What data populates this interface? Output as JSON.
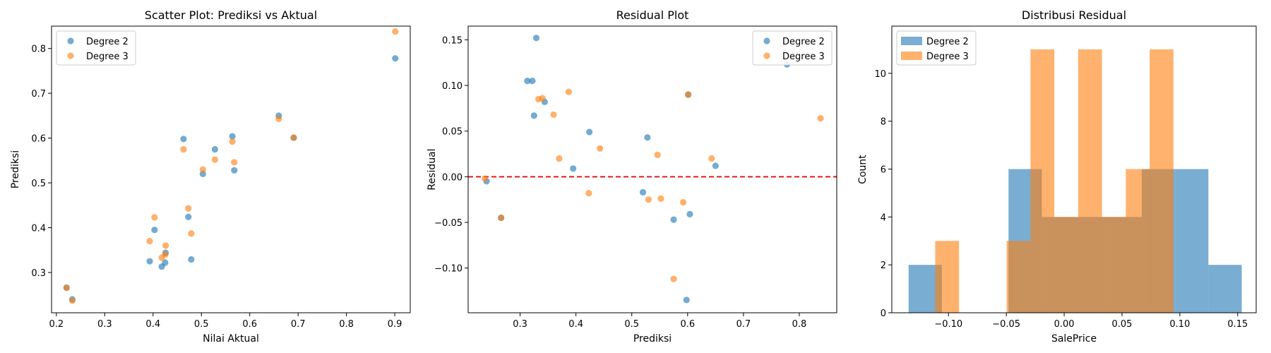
{
  "colors": {
    "degree2": "#1f77b4",
    "degree3": "#ff7f0e",
    "zero_line": "#e31a1c"
  },
  "chart_data": [
    {
      "type": "scatter",
      "title": "Scatter Plot: Prediksi vs Aktual",
      "xlabel": "Nilai Aktual",
      "ylabel": "Prediksi",
      "xlim": [
        0.19,
        0.932
      ],
      "ylim": [
        0.21,
        0.85
      ],
      "xticks": [
        "0.2",
        "0.3",
        "0.4",
        "0.5",
        "0.6",
        "0.7",
        "0.8",
        "0.9"
      ],
      "yticks": [
        "0.3",
        "0.4",
        "0.5",
        "0.6",
        "0.7",
        "0.8"
      ],
      "legend": "top-left",
      "grid": false,
      "series": [
        {
          "name": "Degree 2",
          "points": [
            [
              0.221,
              0.266
            ],
            [
              0.233,
              0.24
            ],
            [
              0.393,
              0.325
            ],
            [
              0.403,
              0.395
            ],
            [
              0.418,
              0.313
            ],
            [
              0.425,
              0.322
            ],
            [
              0.426,
              0.344
            ],
            [
              0.463,
              0.598
            ],
            [
              0.473,
              0.424
            ],
            [
              0.479,
              0.329
            ],
            [
              0.503,
              0.52
            ],
            [
              0.528,
              0.575
            ],
            [
              0.564,
              0.604
            ],
            [
              0.568,
              0.528
            ],
            [
              0.66,
              0.65
            ],
            [
              0.691,
              0.601
            ],
            [
              0.901,
              0.778
            ]
          ]
        },
        {
          "name": "Degree 3",
          "points": [
            [
              0.221,
              0.266
            ],
            [
              0.233,
              0.237
            ],
            [
              0.393,
              0.37
            ],
            [
              0.403,
              0.423
            ],
            [
              0.418,
              0.333
            ],
            [
              0.425,
              0.34
            ],
            [
              0.426,
              0.36
            ],
            [
              0.463,
              0.575
            ],
            [
              0.473,
              0.443
            ],
            [
              0.479,
              0.387
            ],
            [
              0.503,
              0.53
            ],
            [
              0.528,
              0.552
            ],
            [
              0.564,
              0.592
            ],
            [
              0.568,
              0.546
            ],
            [
              0.66,
              0.643
            ],
            [
              0.691,
              0.601
            ],
            [
              0.901,
              0.838
            ]
          ]
        }
      ]
    },
    {
      "type": "scatter",
      "title": "Residual Plot",
      "xlabel": "Prediksi",
      "ylabel": "Residual",
      "xlim": [
        0.207,
        0.867
      ],
      "ylim": [
        -0.149,
        0.165
      ],
      "xticks": [
        "0.3",
        "0.4",
        "0.5",
        "0.6",
        "0.7",
        "0.8"
      ],
      "yticks": [
        "−0.10",
        "−0.05",
        "0.00",
        "0.05",
        "0.10",
        "0.15"
      ],
      "reference_line_y": 0,
      "legend": "top-right",
      "grid": false,
      "series": [
        {
          "name": "Degree 2",
          "points": [
            [
              0.24,
              -0.005
            ],
            [
              0.266,
              -0.045
            ],
            [
              0.313,
              0.105
            ],
            [
              0.322,
              0.105
            ],
            [
              0.325,
              0.067
            ],
            [
              0.329,
              0.152
            ],
            [
              0.344,
              0.082
            ],
            [
              0.395,
              0.009
            ],
            [
              0.424,
              0.049
            ],
            [
              0.52,
              -0.017
            ],
            [
              0.528,
              0.043
            ],
            [
              0.575,
              -0.047
            ],
            [
              0.598,
              -0.135
            ],
            [
              0.601,
              0.09
            ],
            [
              0.604,
              -0.041
            ],
            [
              0.65,
              0.012
            ],
            [
              0.778,
              0.123
            ]
          ]
        },
        {
          "name": "Degree 3",
          "points": [
            [
              0.237,
              -0.002
            ],
            [
              0.266,
              -0.045
            ],
            [
              0.333,
              0.085
            ],
            [
              0.34,
              0.086
            ],
            [
              0.36,
              0.068
            ],
            [
              0.37,
              0.02
            ],
            [
              0.387,
              0.093
            ],
            [
              0.423,
              -0.018
            ],
            [
              0.443,
              0.031
            ],
            [
              0.53,
              -0.025
            ],
            [
              0.546,
              0.024
            ],
            [
              0.552,
              -0.024
            ],
            [
              0.575,
              -0.112
            ],
            [
              0.592,
              -0.028
            ],
            [
              0.601,
              0.09
            ],
            [
              0.643,
              0.02
            ],
            [
              0.838,
              0.064
            ]
          ]
        }
      ]
    },
    {
      "type": "histogram",
      "title": "Distribusi Residual",
      "xlabel": "SalePrice",
      "ylabel": "Count",
      "xlim": [
        -0.149,
        0.166
      ],
      "ylim": [
        0,
        11.97
      ],
      "xticks": [
        "−0.10",
        "−0.05",
        "0.00",
        "0.05",
        "0.10",
        "0.15"
      ],
      "yticks": [
        "0",
        "2",
        "4",
        "6",
        "8",
        "10"
      ],
      "legend": "top-left",
      "grid": false,
      "series": [
        {
          "name": "Degree 2",
          "bins": [
            [
              -0.1345,
              -0.1057,
              2
            ],
            [
              -0.1057,
              -0.0769,
              0
            ],
            [
              -0.0769,
              -0.0481,
              0
            ],
            [
              -0.0481,
              -0.0193,
              6
            ],
            [
              -0.0193,
              0.0095,
              4
            ],
            [
              0.0095,
              0.0383,
              4
            ],
            [
              0.0383,
              0.0671,
              4
            ],
            [
              0.0671,
              0.0959,
              6
            ],
            [
              0.0959,
              0.1247,
              6
            ],
            [
              0.1247,
              0.1535,
              2
            ]
          ]
        },
        {
          "name": "Degree 3",
          "bins": [
            [
              -0.1115,
              -0.0909,
              3
            ],
            [
              -0.0909,
              -0.0703,
              0
            ],
            [
              -0.0703,
              -0.0497,
              0
            ],
            [
              -0.0497,
              -0.0291,
              3
            ],
            [
              -0.0291,
              -0.0085,
              11
            ],
            [
              -0.0085,
              0.0121,
              4
            ],
            [
              0.0121,
              0.0327,
              11
            ],
            [
              0.0327,
              0.0533,
              4
            ],
            [
              0.0533,
              0.0739,
              6
            ],
            [
              0.0739,
              0.0945,
              11
            ]
          ]
        }
      ]
    }
  ]
}
